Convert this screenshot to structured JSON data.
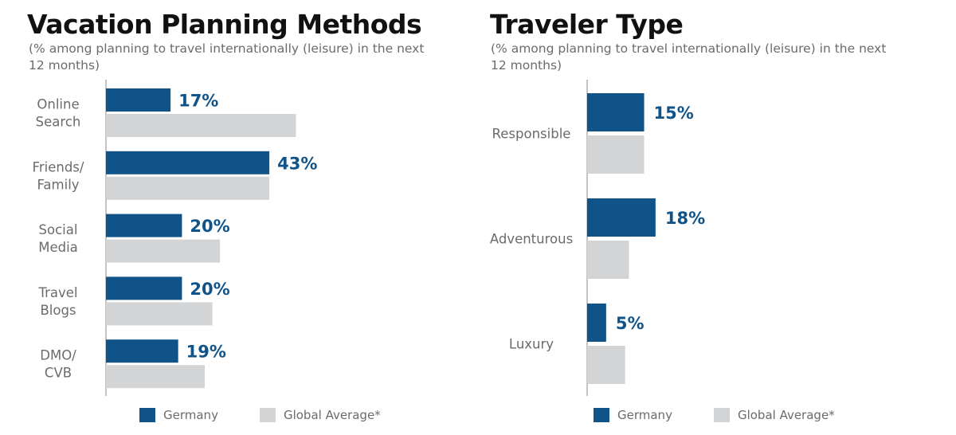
{
  "colors": {
    "germany": "#0f5389",
    "global": "#d3d4d5",
    "axis": "#8a8a8a"
  },
  "chart_data": [
    {
      "type": "bar",
      "orientation": "horizontal",
      "title": "Vacation Planning Methods",
      "subtitle": "(% among planning to travel internationally (leisure) in the next 12 months)",
      "categories": [
        [
          "Online",
          "Search"
        ],
        [
          "Friends/",
          "Family"
        ],
        [
          "Social",
          "Media"
        ],
        [
          "Travel",
          "Blogs"
        ],
        [
          "DMO/",
          "CVB"
        ]
      ],
      "series": [
        {
          "name": "Germany",
          "values": [
            17,
            43,
            20,
            20,
            19
          ],
          "labels": [
            "17%",
            "43%",
            "20%",
            "20%",
            "19%"
          ]
        },
        {
          "name": "Global Average*",
          "values": [
            50,
            43,
            30,
            28,
            26
          ]
        }
      ],
      "xlim": [
        0,
        100
      ],
      "legend": "bottom"
    },
    {
      "type": "bar",
      "orientation": "horizontal",
      "title": "Traveler Type",
      "subtitle": "(% among planning to travel internationally (leisure) in the next 12 months)",
      "categories": [
        [
          "Responsible"
        ],
        [
          "Adventurous"
        ],
        [
          "Luxury"
        ]
      ],
      "series": [
        {
          "name": "Germany",
          "values": [
            15,
            18,
            5
          ],
          "labels": [
            "15%",
            "18%",
            "5%"
          ]
        },
        {
          "name": "Global Average*",
          "values": [
            15,
            11,
            10
          ]
        }
      ],
      "xlim": [
        0,
        100
      ],
      "legend": "bottom"
    }
  ]
}
